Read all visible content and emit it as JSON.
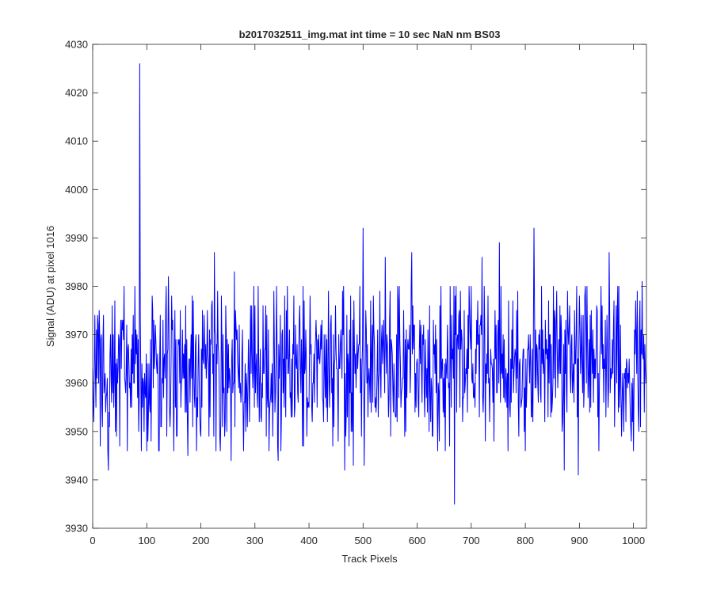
{
  "chart_data": {
    "type": "line",
    "title": "b2017032511_img.mat int time = 10 sec  NaN nm BS03",
    "xlabel": "Track Pixels",
    "ylabel": "Signal (ADU) at pixel 1016",
    "xlim": [
      0,
      1024
    ],
    "ylim": [
      3930,
      4030
    ],
    "xticks": [
      0,
      100,
      200,
      300,
      400,
      500,
      600,
      700,
      800,
      900,
      1000
    ],
    "yticks": [
      3930,
      3940,
      3950,
      3960,
      3970,
      3980,
      3990,
      4000,
      4010,
      4020,
      4030
    ],
    "grid": false,
    "series_color": "#0000ff",
    "noise_level": 3964,
    "noise_range": [
      3944,
      3982
    ],
    "peaks": [
      {
        "x": 0,
        "y": 3963
      },
      {
        "x": 2,
        "y": 3952
      },
      {
        "x": 4,
        "y": 3974
      },
      {
        "x": 6,
        "y": 3955
      },
      {
        "x": 9,
        "y": 3974
      },
      {
        "x": 14,
        "y": 3947
      },
      {
        "x": 20,
        "y": 3974
      },
      {
        "x": 29,
        "y": 3942
      },
      {
        "x": 36,
        "y": 3976
      },
      {
        "x": 44,
        "y": 3949
      },
      {
        "x": 50,
        "y": 3947
      },
      {
        "x": 58,
        "y": 3980
      },
      {
        "x": 85,
        "y": 3950
      },
      {
        "x": 87,
        "y": 4026
      },
      {
        "x": 89,
        "y": 3962
      },
      {
        "x": 95,
        "y": 3950
      },
      {
        "x": 108,
        "y": 3948
      },
      {
        "x": 123,
        "y": 3946
      },
      {
        "x": 140,
        "y": 3982
      },
      {
        "x": 156,
        "y": 3949
      },
      {
        "x": 176,
        "y": 3945
      },
      {
        "x": 184,
        "y": 3978
      },
      {
        "x": 225,
        "y": 3987
      },
      {
        "x": 240,
        "y": 3951
      },
      {
        "x": 256,
        "y": 3944
      },
      {
        "x": 262,
        "y": 3983
      },
      {
        "x": 290,
        "y": 3952
      },
      {
        "x": 315,
        "y": 3976
      },
      {
        "x": 343,
        "y": 3944
      },
      {
        "x": 355,
        "y": 3978
      },
      {
        "x": 372,
        "y": 3978
      },
      {
        "x": 396,
        "y": 3949
      },
      {
        "x": 444,
        "y": 3947
      },
      {
        "x": 466,
        "y": 3942
      },
      {
        "x": 482,
        "y": 3943
      },
      {
        "x": 500,
        "y": 3992
      },
      {
        "x": 502,
        "y": 3943
      },
      {
        "x": 519,
        "y": 3978
      },
      {
        "x": 541,
        "y": 3986
      },
      {
        "x": 563,
        "y": 3952
      },
      {
        "x": 590,
        "y": 3987
      },
      {
        "x": 641,
        "y": 3948
      },
      {
        "x": 669,
        "y": 3935
      },
      {
        "x": 680,
        "y": 3979
      },
      {
        "x": 720,
        "y": 3986
      },
      {
        "x": 752,
        "y": 3989
      },
      {
        "x": 800,
        "y": 3946
      },
      {
        "x": 816,
        "y": 3992
      },
      {
        "x": 830,
        "y": 3980
      },
      {
        "x": 872,
        "y": 3942
      },
      {
        "x": 898,
        "y": 3941
      },
      {
        "x": 936,
        "y": 3946
      },
      {
        "x": 955,
        "y": 3987
      },
      {
        "x": 968,
        "y": 3976
      },
      {
        "x": 1000,
        "y": 3946
      },
      {
        "x": 1010,
        "y": 3950
      },
      {
        "x": 1016,
        "y": 3981
      },
      {
        "x": 1020,
        "y": 3954
      },
      {
        "x": 1023,
        "y": 3960
      }
    ]
  }
}
